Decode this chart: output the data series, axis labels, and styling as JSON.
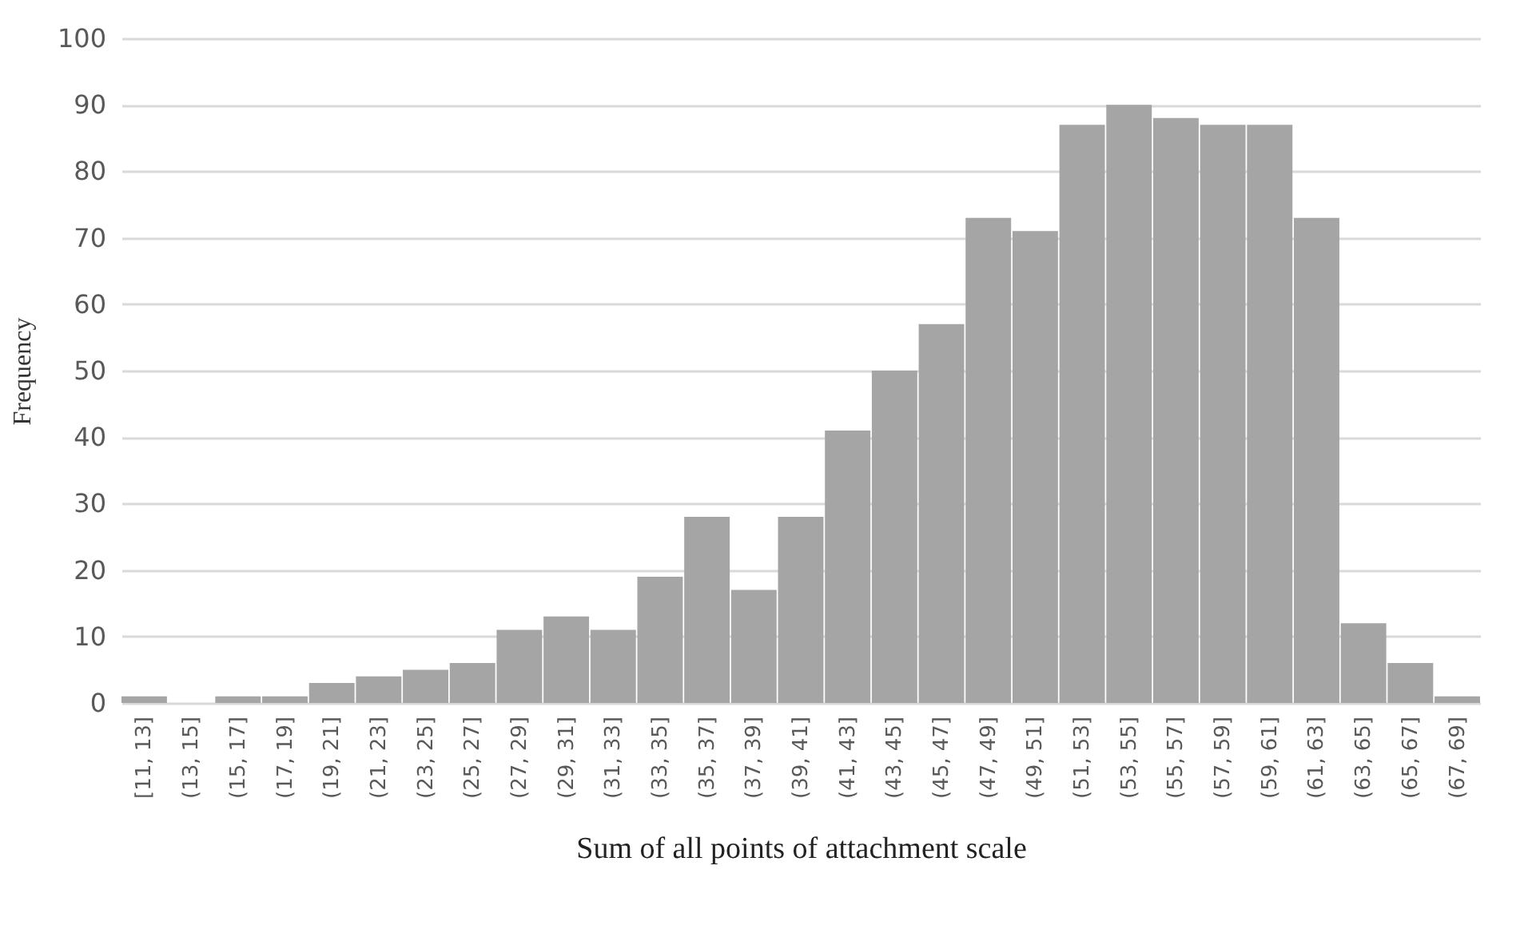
{
  "chart_data": {
    "type": "bar",
    "xlabel": "Sum of all points of attachment scale",
    "ylabel": "Frequency",
    "categories": [
      "[11, 13]",
      "(13, 15]",
      "(15, 17]",
      "(17, 19]",
      "(19, 21]",
      "(21, 23]",
      "(23, 25]",
      "(25, 27]",
      "(27, 29]",
      "(29, 31]",
      "(31, 33]",
      "(33, 35]",
      "(35, 37]",
      "(37, 39]",
      "(39, 41]",
      "(41, 43]",
      "(43, 45]",
      "(45, 47]",
      "(47, 49]",
      "(49, 51]",
      "(51, 53]",
      "(53, 55]",
      "(55, 57]",
      "(57, 59]",
      "(59, 61]",
      "(61, 63]",
      "(63, 65]",
      "(65, 67]",
      "(67, 69]"
    ],
    "values": [
      1,
      0,
      1,
      1,
      3,
      4,
      5,
      6,
      11,
      13,
      11,
      19,
      28,
      17,
      28,
      41,
      50,
      57,
      73,
      71,
      87,
      90,
      88,
      87,
      87,
      73,
      12,
      6,
      1
    ],
    "color": "#a5a5a5",
    "ylim": [
      0,
      100
    ],
    "yticks": [
      0,
      10,
      20,
      30,
      40,
      50,
      60,
      70,
      80,
      90,
      100
    ],
    "grid": "y"
  }
}
